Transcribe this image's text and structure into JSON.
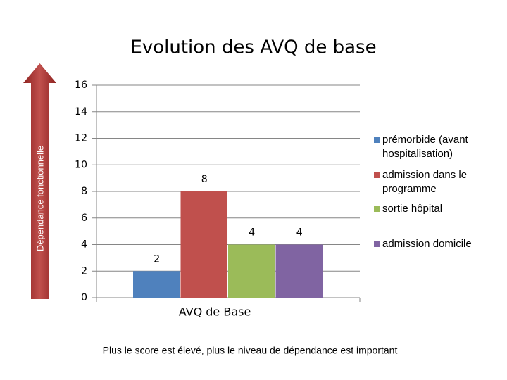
{
  "chart_data": {
    "type": "bar",
    "title": "Evolution des AVQ de base",
    "y_label": "Dépendance fonctionnelle",
    "x_label": "AVQ de Base",
    "note": "Plus le score est élevé, plus le niveau de dépendance est important",
    "categories": [
      "AVQ de Base"
    ],
    "series": [
      {
        "name": "prémorbide (avant hospitalisation)",
        "color": "#4f81bd",
        "values": [
          2
        ]
      },
      {
        "name": "admission dans le programme",
        "color": "#c0504d",
        "values": [
          8
        ]
      },
      {
        "name": "sortie hôpital",
        "color": "#9bbb59",
        "values": [
          4
        ]
      },
      {
        "name": "admission domicile",
        "color": "#8064a2",
        "values": [
          4
        ]
      }
    ],
    "ylim": [
      0,
      16
    ],
    "yticks": [
      0,
      2,
      4,
      6,
      8,
      10,
      12,
      14,
      16
    ],
    "grid": true,
    "legend": "right"
  }
}
